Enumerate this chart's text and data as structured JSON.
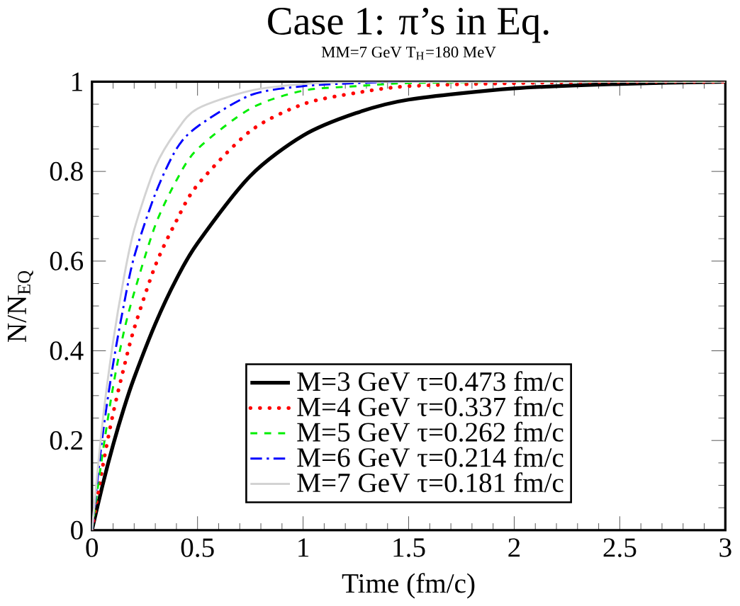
{
  "chart_data": {
    "type": "line",
    "title": "Case 1: π’s in Eq.",
    "subtitle": "MM=7 GeV T$_{H}$=180 MeV",
    "xlabel": "Time (fm/c)",
    "ylabel": "N/N$_{EQ}$",
    "x": [
      0,
      0.05,
      0.1,
      0.15,
      0.2,
      0.3,
      0.4,
      0.5,
      0.75,
      1,
      1.25,
      1.5,
      2,
      2.5,
      3
    ],
    "series": [
      {
        "name": "M=3 GeV τ=0.473 fm/c",
        "color": "#000000",
        "line_style": "solid",
        "values": [
          0,
          0.1,
          0.19,
          0.27,
          0.34,
          0.46,
          0.56,
          0.64,
          0.79,
          0.88,
          0.93,
          0.96,
          0.985,
          0.995,
          1
        ]
      },
      {
        "name": "M=4 GeV τ=0.337 fm/c",
        "color": "#ff0000",
        "line_style": "dotted",
        "values": [
          0,
          0.14,
          0.26,
          0.36,
          0.45,
          0.59,
          0.69,
          0.77,
          0.89,
          0.95,
          0.975,
          0.99,
          0.997,
          1,
          1
        ]
      },
      {
        "name": "M=5 GeV τ=0.262 fm/c",
        "color": "#00ee00",
        "line_style": "dashed",
        "values": [
          0,
          0.17,
          0.32,
          0.44,
          0.53,
          0.68,
          0.78,
          0.85,
          0.94,
          0.98,
          0.99,
          0.997,
          1,
          1,
          1
        ]
      },
      {
        "name": "M=6 GeV τ=0.214 fm/c",
        "color": "#0000ff",
        "line_style": "dashdot",
        "values": [
          0,
          0.21,
          0.37,
          0.5,
          0.61,
          0.75,
          0.85,
          0.9,
          0.97,
          0.99,
          0.997,
          1,
          1,
          null,
          null
        ]
      },
      {
        "name": "M=7 GeV τ=0.181 fm/c",
        "color": "#d3d3d3",
        "line_style": "solid",
        "values": [
          0,
          0.24,
          0.42,
          0.56,
          0.67,
          0.81,
          0.89,
          0.94,
          0.98,
          0.995,
          1,
          1,
          1,
          1,
          1
        ]
      }
    ],
    "xlim": [
      0,
      3
    ],
    "ylim": [
      0,
      1
    ],
    "xticks": [
      0,
      0.5,
      1,
      1.5,
      2,
      2.5,
      3
    ],
    "yticks": [
      0,
      0.2,
      0.4,
      0.6,
      0.8,
      1
    ],
    "grid": false,
    "legend": "bottom",
    "marker": "none"
  }
}
